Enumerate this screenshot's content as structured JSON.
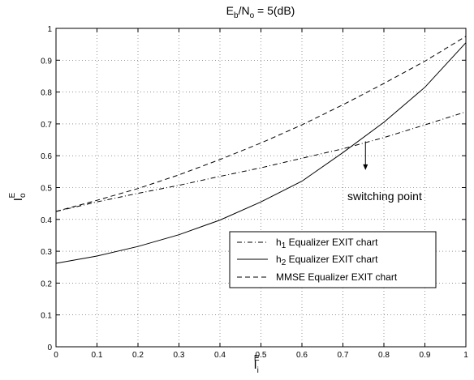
{
  "chart_data": {
    "type": "line",
    "title": {
      "base": "E",
      "sub1": "b",
      "mid": "/N",
      "sub2": "o",
      "tail": " = 5(dB)"
    },
    "xlabel": {
      "base": "I",
      "sub": "i",
      "sup": "E"
    },
    "ylabel": {
      "base": "I",
      "sub": "o",
      "sup": "E"
    },
    "xlim": [
      0,
      1
    ],
    "ylim": [
      0,
      1
    ],
    "xticks": [
      "0",
      "0.1",
      "0.2",
      "0.3",
      "0.4",
      "0.5",
      "0.6",
      "0.7",
      "0.8",
      "0.9",
      "1"
    ],
    "yticks": [
      "0",
      "0.1",
      "0.2",
      "0.3",
      "0.4",
      "0.5",
      "0.6",
      "0.7",
      "0.8",
      "0.9",
      "1"
    ],
    "grid": true,
    "legend_position": "lower-right",
    "series": [
      {
        "name": {
          "base": "h",
          "sub": "1",
          "rest": " Equalizer EXIT chart"
        },
        "style": "dashdot",
        "x": [
          0,
          0.1,
          0.2,
          0.3,
          0.4,
          0.5,
          0.6,
          0.7,
          0.8,
          0.9,
          1.0
        ],
        "y": [
          0.425,
          0.455,
          0.482,
          0.507,
          0.535,
          0.562,
          0.592,
          0.622,
          0.657,
          0.697,
          0.738
        ]
      },
      {
        "name": {
          "base": "h",
          "sub": "2",
          "rest": " Equalizer EXIT chart"
        },
        "style": "solid",
        "x": [
          0,
          0.1,
          0.2,
          0.3,
          0.4,
          0.5,
          0.6,
          0.7,
          0.8,
          0.9,
          1.0
        ],
        "y": [
          0.262,
          0.285,
          0.315,
          0.352,
          0.398,
          0.455,
          0.52,
          0.61,
          0.705,
          0.815,
          0.955
        ]
      },
      {
        "name": {
          "base": "MMSE Equalizer EXIT chart"
        },
        "style": "dashed",
        "x": [
          0,
          0.1,
          0.2,
          0.3,
          0.4,
          0.5,
          0.6,
          0.7,
          0.8,
          0.9,
          1.0
        ],
        "y": [
          0.425,
          0.46,
          0.497,
          0.54,
          0.588,
          0.64,
          0.697,
          0.76,
          0.827,
          0.897,
          0.975
        ]
      }
    ],
    "annotations": [
      {
        "text": "switching point",
        "arrow_from": [
          0.755,
          0.645
        ],
        "arrow_to": [
          0.755,
          0.555
        ]
      }
    ]
  }
}
